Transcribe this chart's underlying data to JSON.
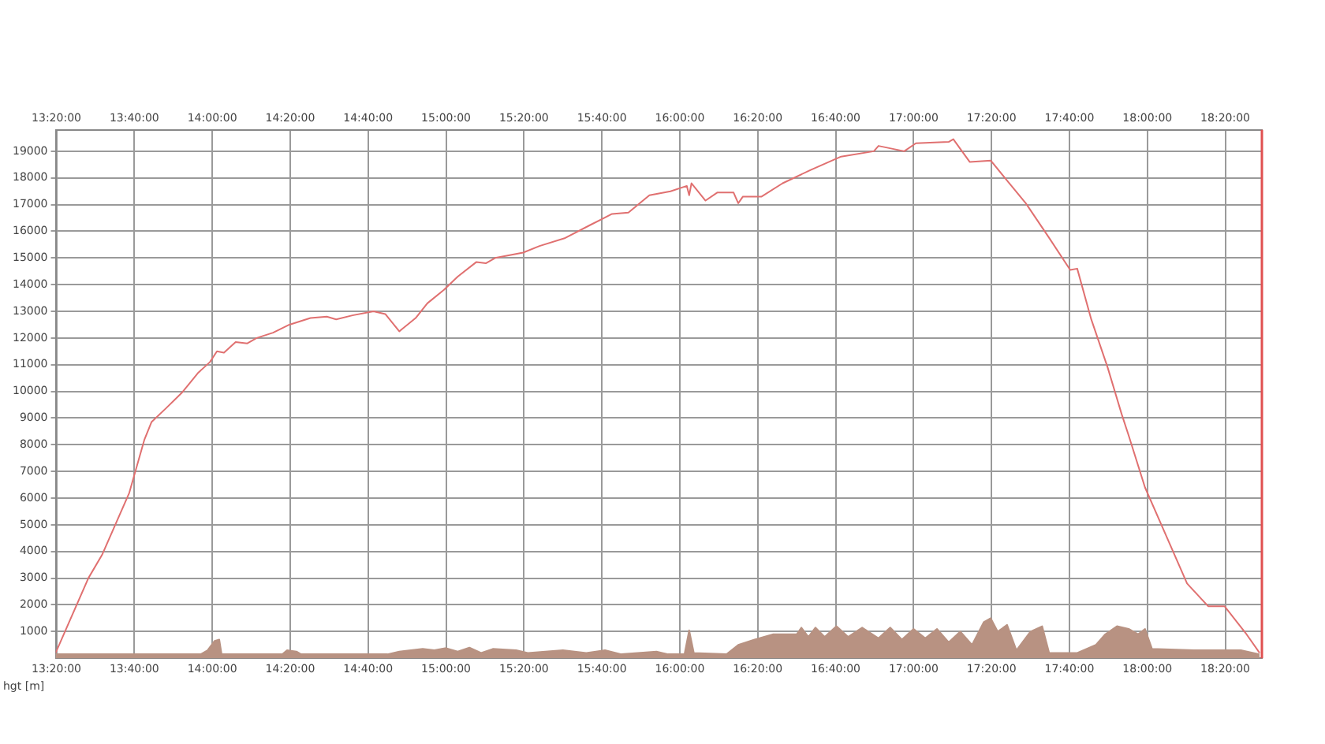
{
  "chart_data": {
    "type": "line",
    "ylabel": "hgt [m]",
    "series": [
      {
        "color": "#e07070",
        "x": [
          13.33,
          13.47,
          13.53,
          13.645,
          13.71,
          13.74,
          13.8,
          13.87,
          13.94,
          13.99,
          14.02,
          14.05,
          14.1,
          14.15,
          14.19,
          14.26,
          14.33,
          14.42,
          14.49,
          14.53,
          14.6,
          14.69,
          14.74,
          14.8,
          14.87,
          14.92,
          14.99,
          15.05,
          15.13,
          15.17,
          15.21,
          15.33,
          15.4,
          15.51,
          15.62,
          15.71,
          15.78,
          15.87,
          15.96,
          16.03,
          16.04,
          16.05,
          16.11,
          16.16,
          16.23,
          16.25,
          16.27,
          16.35,
          16.44,
          16.56,
          16.69,
          16.83,
          16.85,
          16.96,
          17.01,
          17.15,
          17.17,
          17.24,
          17.33,
          17.4,
          17.48,
          17.58,
          17.67,
          17.7,
          17.76,
          17.83,
          17.89,
          17.92,
          17.99,
          18.06,
          18.17,
          18.26,
          18.33,
          18.42,
          18.48
        ],
        "values": [
          200,
          3000,
          3900,
          6200,
          8200,
          8850,
          9350,
          9950,
          10700,
          11100,
          11500,
          11450,
          11850,
          11800,
          12000,
          12200,
          12500,
          12750,
          12800,
          12700,
          12850,
          13000,
          12900,
          12250,
          12750,
          13300,
          13800,
          14300,
          14850,
          14800,
          15000,
          15200,
          15450,
          15750,
          16250,
          16650,
          16700,
          17350,
          17500,
          17700,
          17350,
          17800,
          17150,
          17450,
          17450,
          17050,
          17300,
          17300,
          17800,
          18300,
          18800,
          19000,
          19200,
          19000,
          19300,
          19350,
          19450,
          18600,
          18650,
          17900,
          17050,
          15750,
          14550,
          14600,
          12700,
          10900,
          9150,
          8350,
          6400,
          5000,
          2800,
          1950,
          1950,
          950,
          200
        ]
      },
      {
        "type": "area",
        "color": "#b89282",
        "x": [
          13.33,
          13.95,
          13.98,
          14.01,
          14.03,
          14.04,
          14.3,
          14.32,
          14.36,
          14.38,
          14.75,
          14.8,
          14.9,
          14.95,
          15.0,
          15.05,
          15.1,
          15.15,
          15.2,
          15.3,
          15.35,
          15.5,
          15.6,
          15.68,
          15.75,
          15.9,
          15.95,
          16.02,
          16.04,
          16.06,
          16.2,
          16.25,
          16.32,
          16.4,
          16.5,
          16.52,
          16.55,
          16.58,
          16.62,
          16.67,
          16.72,
          16.78,
          16.85,
          16.9,
          16.95,
          17.0,
          17.05,
          17.1,
          17.15,
          17.2,
          17.25,
          17.3,
          17.33,
          17.36,
          17.4,
          17.44,
          17.5,
          17.55,
          17.58,
          17.7,
          17.78,
          17.82,
          17.87,
          17.92,
          17.96,
          17.99,
          18.02,
          18.2,
          18.4,
          18.48
        ],
        "values": [
          150,
          150,
          300,
          650,
          700,
          150,
          150,
          300,
          250,
          150,
          150,
          250,
          350,
          300,
          380,
          250,
          400,
          200,
          350,
          300,
          200,
          300,
          200,
          300,
          150,
          250,
          150,
          150,
          1050,
          200,
          150,
          500,
          700,
          900,
          900,
          1150,
          800,
          1150,
          800,
          1200,
          800,
          1150,
          750,
          1150,
          700,
          1100,
          750,
          1100,
          600,
          1000,
          500,
          1350,
          1500,
          1000,
          1250,
          300,
          1000,
          1200,
          200,
          200,
          500,
          900,
          1200,
          1100,
          900,
          1100,
          350,
          300,
          300,
          150
        ]
      }
    ],
    "xlim": [
      13.33,
      18.49
    ],
    "xticks": [
      {
        "value": 13.3333,
        "label": "13:20:00"
      },
      {
        "value": 13.6667,
        "label": "13:40:00"
      },
      {
        "value": 14,
        "label": "14:00:00"
      },
      {
        "value": 14.3333,
        "label": "14:20:00"
      },
      {
        "value": 14.6667,
        "label": "14:40:00"
      },
      {
        "value": 15,
        "label": "15:00:00"
      },
      {
        "value": 15.3333,
        "label": "15:20:00"
      },
      {
        "value": 15.6667,
        "label": "15:40:00"
      },
      {
        "value": 16,
        "label": "16:00:00"
      },
      {
        "value": 16.3333,
        "label": "16:20:00"
      },
      {
        "value": 16.6667,
        "label": "16:40:00"
      },
      {
        "value": 17,
        "label": "17:00:00"
      },
      {
        "value": 17.3333,
        "label": "17:20:00"
      },
      {
        "value": 17.6667,
        "label": "17:40:00"
      },
      {
        "value": 18,
        "label": "18:00:00"
      },
      {
        "value": 18.3333,
        "label": "18:20:00"
      }
    ],
    "x2lim": [
      13.33,
      18.49
    ],
    "x2ticks": [
      {
        "value": 13.3333,
        "label": "13:20:00"
      },
      {
        "value": 13.6667,
        "label": "13:40:00"
      },
      {
        "value": 14,
        "label": "14:00:00"
      },
      {
        "value": 14.3333,
        "label": "14:20:00"
      },
      {
        "value": 14.6667,
        "label": "14:40:00"
      },
      {
        "value": 15,
        "label": "15:00:00"
      },
      {
        "value": 15.3333,
        "label": "15:20:00"
      },
      {
        "value": 15.6667,
        "label": "15:40:00"
      },
      {
        "value": 16,
        "label": "16:00:00"
      },
      {
        "value": 16.3333,
        "label": "16:20:00"
      },
      {
        "value": 16.6667,
        "label": "16:40:00"
      },
      {
        "value": 17,
        "label": "17:00:00"
      },
      {
        "value": 17.3333,
        "label": "17:20:00"
      },
      {
        "value": 17.6667,
        "label": "17:40:00"
      },
      {
        "value": 18,
        "label": "18:00:00"
      },
      {
        "value": 18.3333,
        "label": "18:20:00"
      }
    ],
    "ylim": [
      0,
      19800
    ],
    "yticks": [
      1000,
      2000,
      3000,
      4000,
      5000,
      6000,
      7000,
      8000,
      9000,
      10000,
      11000,
      12000,
      13000,
      14000,
      15000,
      16000,
      17000,
      18000,
      19000
    ],
    "ref_lines": [
      {
        "axis": "x",
        "value": 18.49,
        "color": "#e05050"
      }
    ],
    "grid": true,
    "legend": false,
    "marker": "none",
    "line_style": "solid"
  }
}
